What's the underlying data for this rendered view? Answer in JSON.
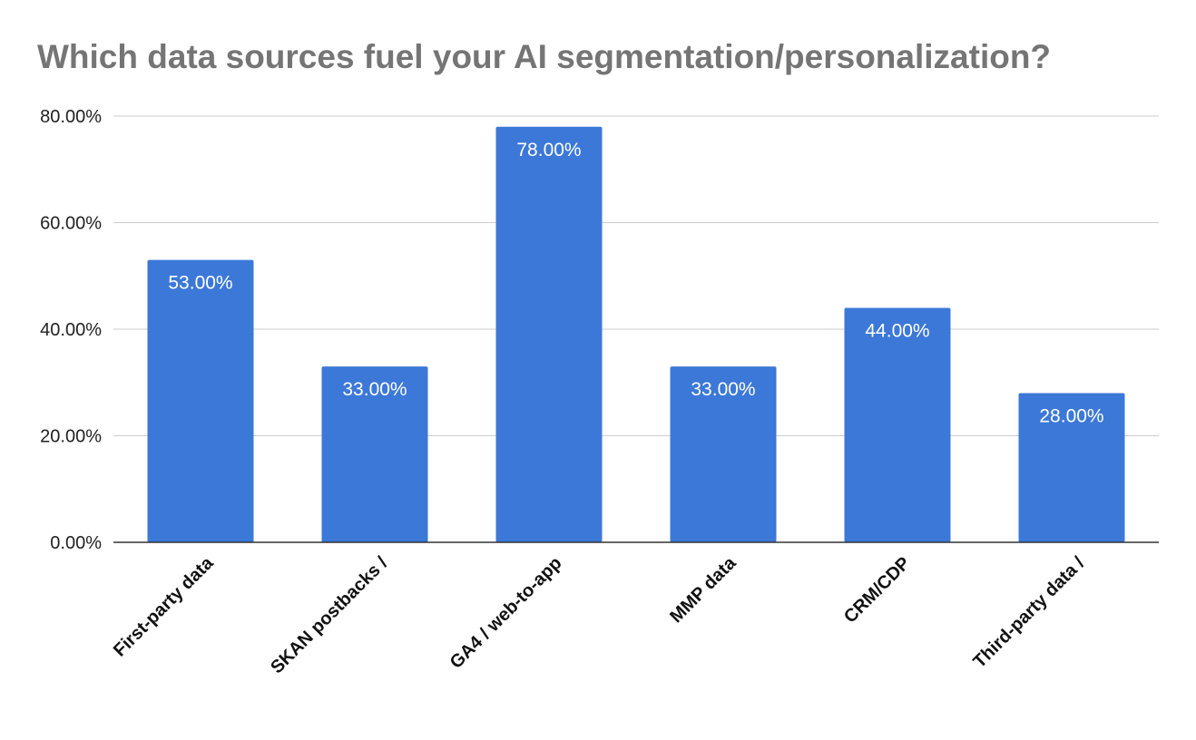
{
  "chart_data": {
    "type": "bar",
    "title": "Which data sources fuel your AI segmentation/personalization?",
    "xlabel": "",
    "ylabel": "",
    "categories": [
      "First-party data",
      "SKAN postbacks /",
      "GA4 / web-to-app",
      "MMP data",
      "CRM/CDP",
      "Third-party data /"
    ],
    "values": [
      53,
      33,
      78,
      33,
      44,
      28
    ],
    "data_labels": [
      "53.00%",
      "33.00%",
      "78.00%",
      "33.00%",
      "44.00%",
      "28.00%"
    ],
    "ylim": [
      0,
      80
    ],
    "yticks": [
      0,
      20,
      40,
      60,
      80
    ],
    "ytick_labels": [
      "0.00%",
      "20.00%",
      "40.00%",
      "60.00%",
      "80.00%"
    ],
    "grid": true,
    "legend": "none",
    "bar_color": "#3c78d8",
    "title_color": "#757575"
  }
}
